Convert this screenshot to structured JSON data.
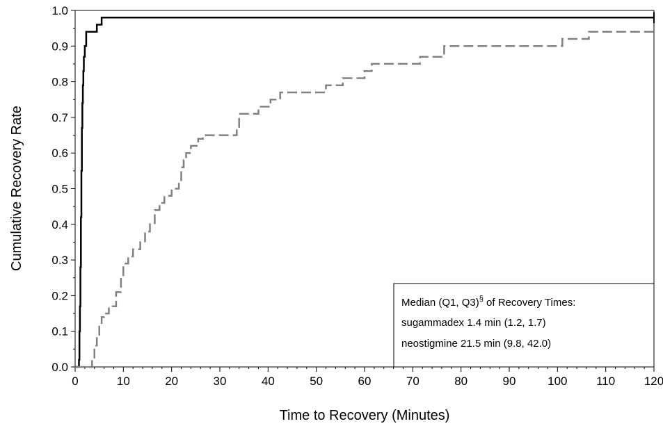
{
  "chart_data": {
    "type": "line",
    "title": "",
    "xlabel": "Time to Recovery (Minutes)",
    "ylabel": "Cumulative Recovery Rate",
    "xlim": [
      0,
      120
    ],
    "ylim": [
      0,
      1.0
    ],
    "x_ticks": [
      0,
      10,
      20,
      30,
      40,
      50,
      60,
      70,
      80,
      90,
      100,
      110,
      120
    ],
    "y_ticks": [
      0.0,
      0.1,
      0.2,
      0.3,
      0.4,
      0.5,
      0.6,
      0.7,
      0.8,
      0.9,
      1.0
    ],
    "y_tick_labels": [
      "0.0",
      "0.1",
      "0.2",
      "0.3",
      "0.4",
      "0.5",
      "0.6",
      "0.7",
      "0.8",
      "0.9",
      "1.0"
    ],
    "grid": false,
    "step": true,
    "series": [
      {
        "name": "sugammadex",
        "color": "#000000",
        "dashed": false,
        "x": [
          0,
          0.8,
          0.9,
          1.0,
          1.1,
          1.2,
          1.3,
          1.4,
          1.5,
          1.6,
          1.7,
          1.8,
          2.0,
          2.3,
          2.6,
          3.0,
          4.5,
          5.5,
          121
        ],
        "y": [
          0,
          0.02,
          0.1,
          0.17,
          0.28,
          0.42,
          0.55,
          0.67,
          0.74,
          0.79,
          0.83,
          0.87,
          0.9,
          0.94,
          0.94,
          0.94,
          0.96,
          0.98,
          0.98
        ],
        "censor_mark_x": 120
      },
      {
        "name": "neostigmine",
        "color": "#808080",
        "dashed": true,
        "x": [
          0,
          3.5,
          4.0,
          4.5,
          5.0,
          5.5,
          6.0,
          7.0,
          8.5,
          9.5,
          10.0,
          11.0,
          12.0,
          13.5,
          14.5,
          15.5,
          16.5,
          17.5,
          18.5,
          20.0,
          21.5,
          22.0,
          22.5,
          23.0,
          24.0,
          25.5,
          26.5,
          33.5,
          34.0,
          38.0,
          40.5,
          42.5,
          52.0,
          55.5,
          60.0,
          61.5,
          71.5,
          76.5,
          101.0,
          106.5,
          121
        ],
        "y": [
          0,
          0.02,
          0.06,
          0.09,
          0.12,
          0.14,
          0.15,
          0.17,
          0.21,
          0.25,
          0.29,
          0.31,
          0.33,
          0.35,
          0.38,
          0.4,
          0.44,
          0.46,
          0.48,
          0.5,
          0.52,
          0.56,
          0.58,
          0.6,
          0.62,
          0.64,
          0.65,
          0.67,
          0.71,
          0.73,
          0.75,
          0.77,
          0.79,
          0.81,
          0.83,
          0.85,
          0.87,
          0.9,
          0.92,
          0.94,
          0.94
        ],
        "censor_mark_x": 120
      }
    ],
    "legend": {
      "placement": "bottom-right",
      "title_prefix": "Median (Q1, Q3)",
      "title_superscript": "§",
      "title_suffix": " of Recovery Times:",
      "lines": [
        "sugammadex 1.4 min (1.2, 1.7)",
        "neostigmine 21.5 min (9.8, 42.0)"
      ]
    }
  }
}
